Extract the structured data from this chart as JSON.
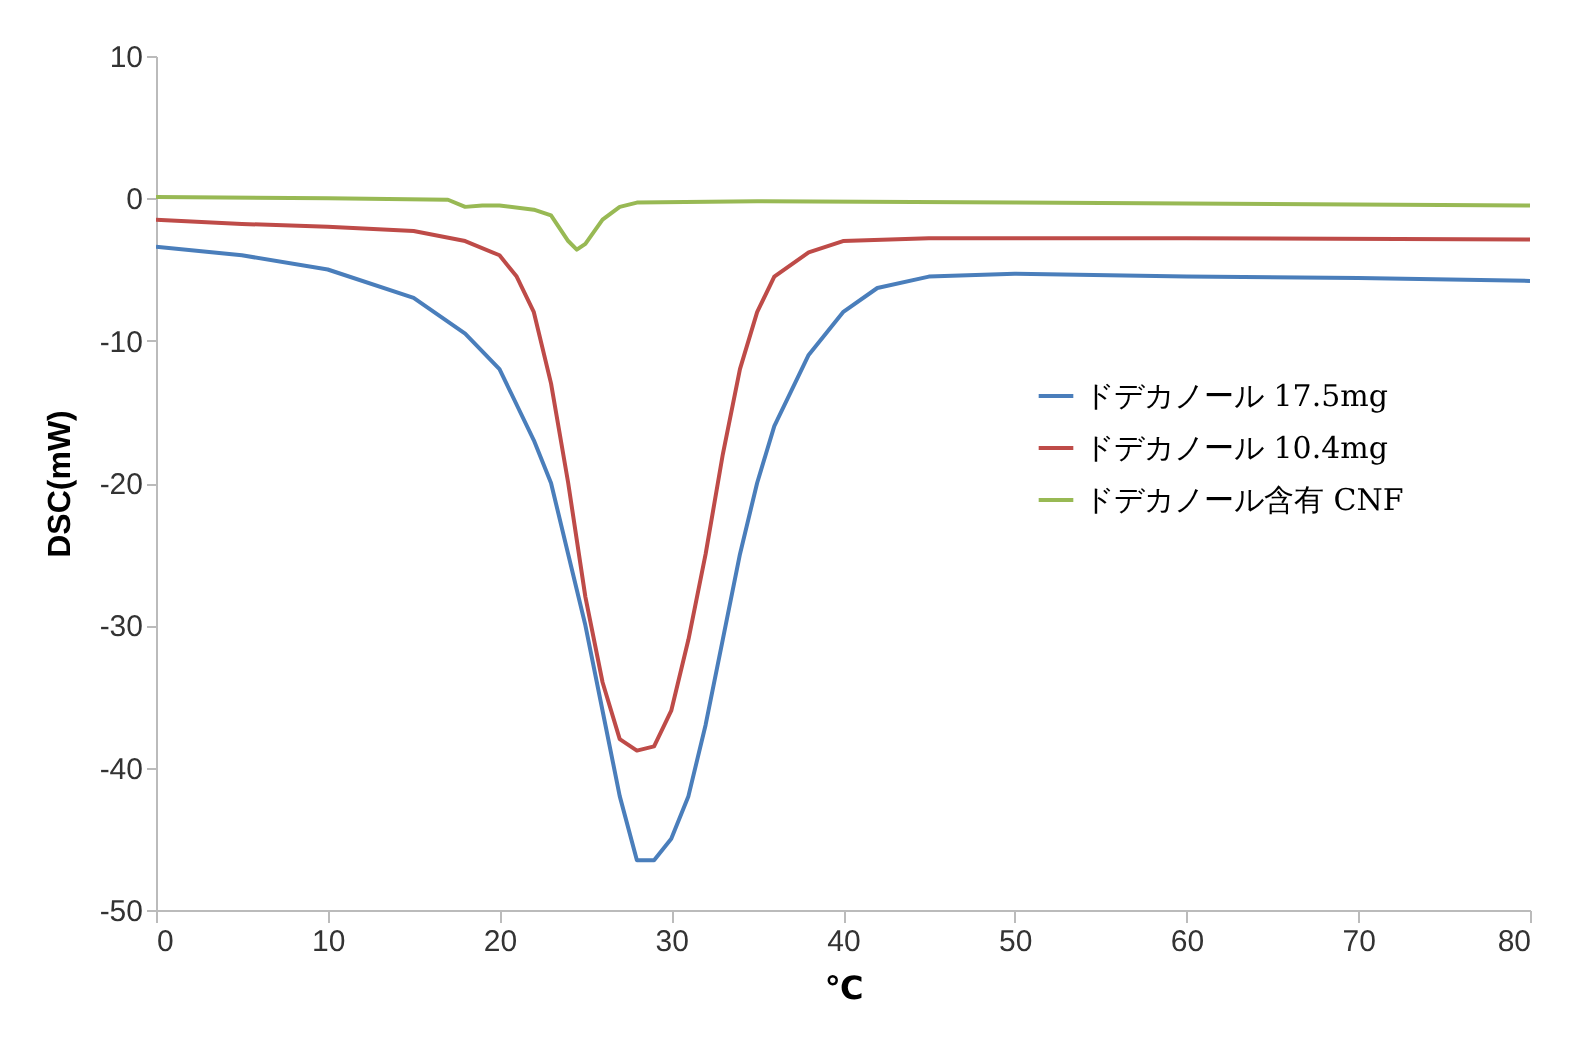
{
  "chart_data": {
    "type": "line",
    "xlabel": "℃",
    "ylabel": "DSC(mW)",
    "xlim": [
      0,
      80
    ],
    "xticks": [
      0,
      10,
      20,
      30,
      40,
      50,
      60,
      70,
      80
    ],
    "ylim": [
      -50,
      10
    ],
    "yticks": [
      -50,
      -40,
      -30,
      -20,
      -10,
      0,
      10
    ],
    "grid": false,
    "legend": "right",
    "marker": "none",
    "line_style": "solid",
    "series": [
      {
        "name": "ドデカノール 17.5mg",
        "color": "#4a7ebb",
        "x": [
          0,
          5,
          10,
          15,
          18,
          20,
          22,
          23,
          24,
          25,
          26,
          27,
          28,
          29,
          30,
          31,
          32,
          33,
          34,
          35,
          36,
          38,
          40,
          42,
          45,
          50,
          60,
          70,
          80
        ],
        "values": [
          -3.4,
          -4.0,
          -5.0,
          -7.0,
          -9.5,
          -12,
          -17,
          -20,
          -25,
          -30,
          -36,
          -42,
          -46.5,
          -46.5,
          -45,
          -42,
          -37,
          -31,
          -25,
          -20,
          -16,
          -11,
          -8,
          -6.3,
          -5.5,
          -5.3,
          -5.5,
          -5.6,
          -5.8
        ]
      },
      {
        "name": "ドデカノール 10.4mg",
        "color": "#be4b48",
        "x": [
          0,
          5,
          10,
          15,
          18,
          20,
          21,
          22,
          23,
          24,
          25,
          26,
          27,
          28,
          29,
          30,
          31,
          32,
          33,
          34,
          35,
          36,
          38,
          40,
          45,
          60,
          80
        ],
        "values": [
          -1.5,
          -1.8,
          -2.0,
          -2.3,
          -3.0,
          -4,
          -5.5,
          -8,
          -13,
          -20,
          -28,
          -34,
          -38,
          -38.8,
          -38.5,
          -36,
          -31,
          -25,
          -18,
          -12,
          -8,
          -5.5,
          -3.8,
          -3.0,
          -2.8,
          -2.8,
          -2.9
        ]
      },
      {
        "name": "ドデカノール含有 CNF",
        "color": "#98b954",
        "x": [
          0,
          10,
          17,
          18,
          19,
          20,
          22,
          23,
          24,
          24.5,
          25,
          26,
          27,
          28,
          35,
          50,
          80
        ],
        "values": [
          0.1,
          0.0,
          -0.1,
          -0.6,
          -0.5,
          -0.5,
          -0.8,
          -1.2,
          -3.0,
          -3.6,
          -3.2,
          -1.5,
          -0.6,
          -0.3,
          -0.2,
          -0.3,
          -0.5
        ]
      }
    ]
  }
}
